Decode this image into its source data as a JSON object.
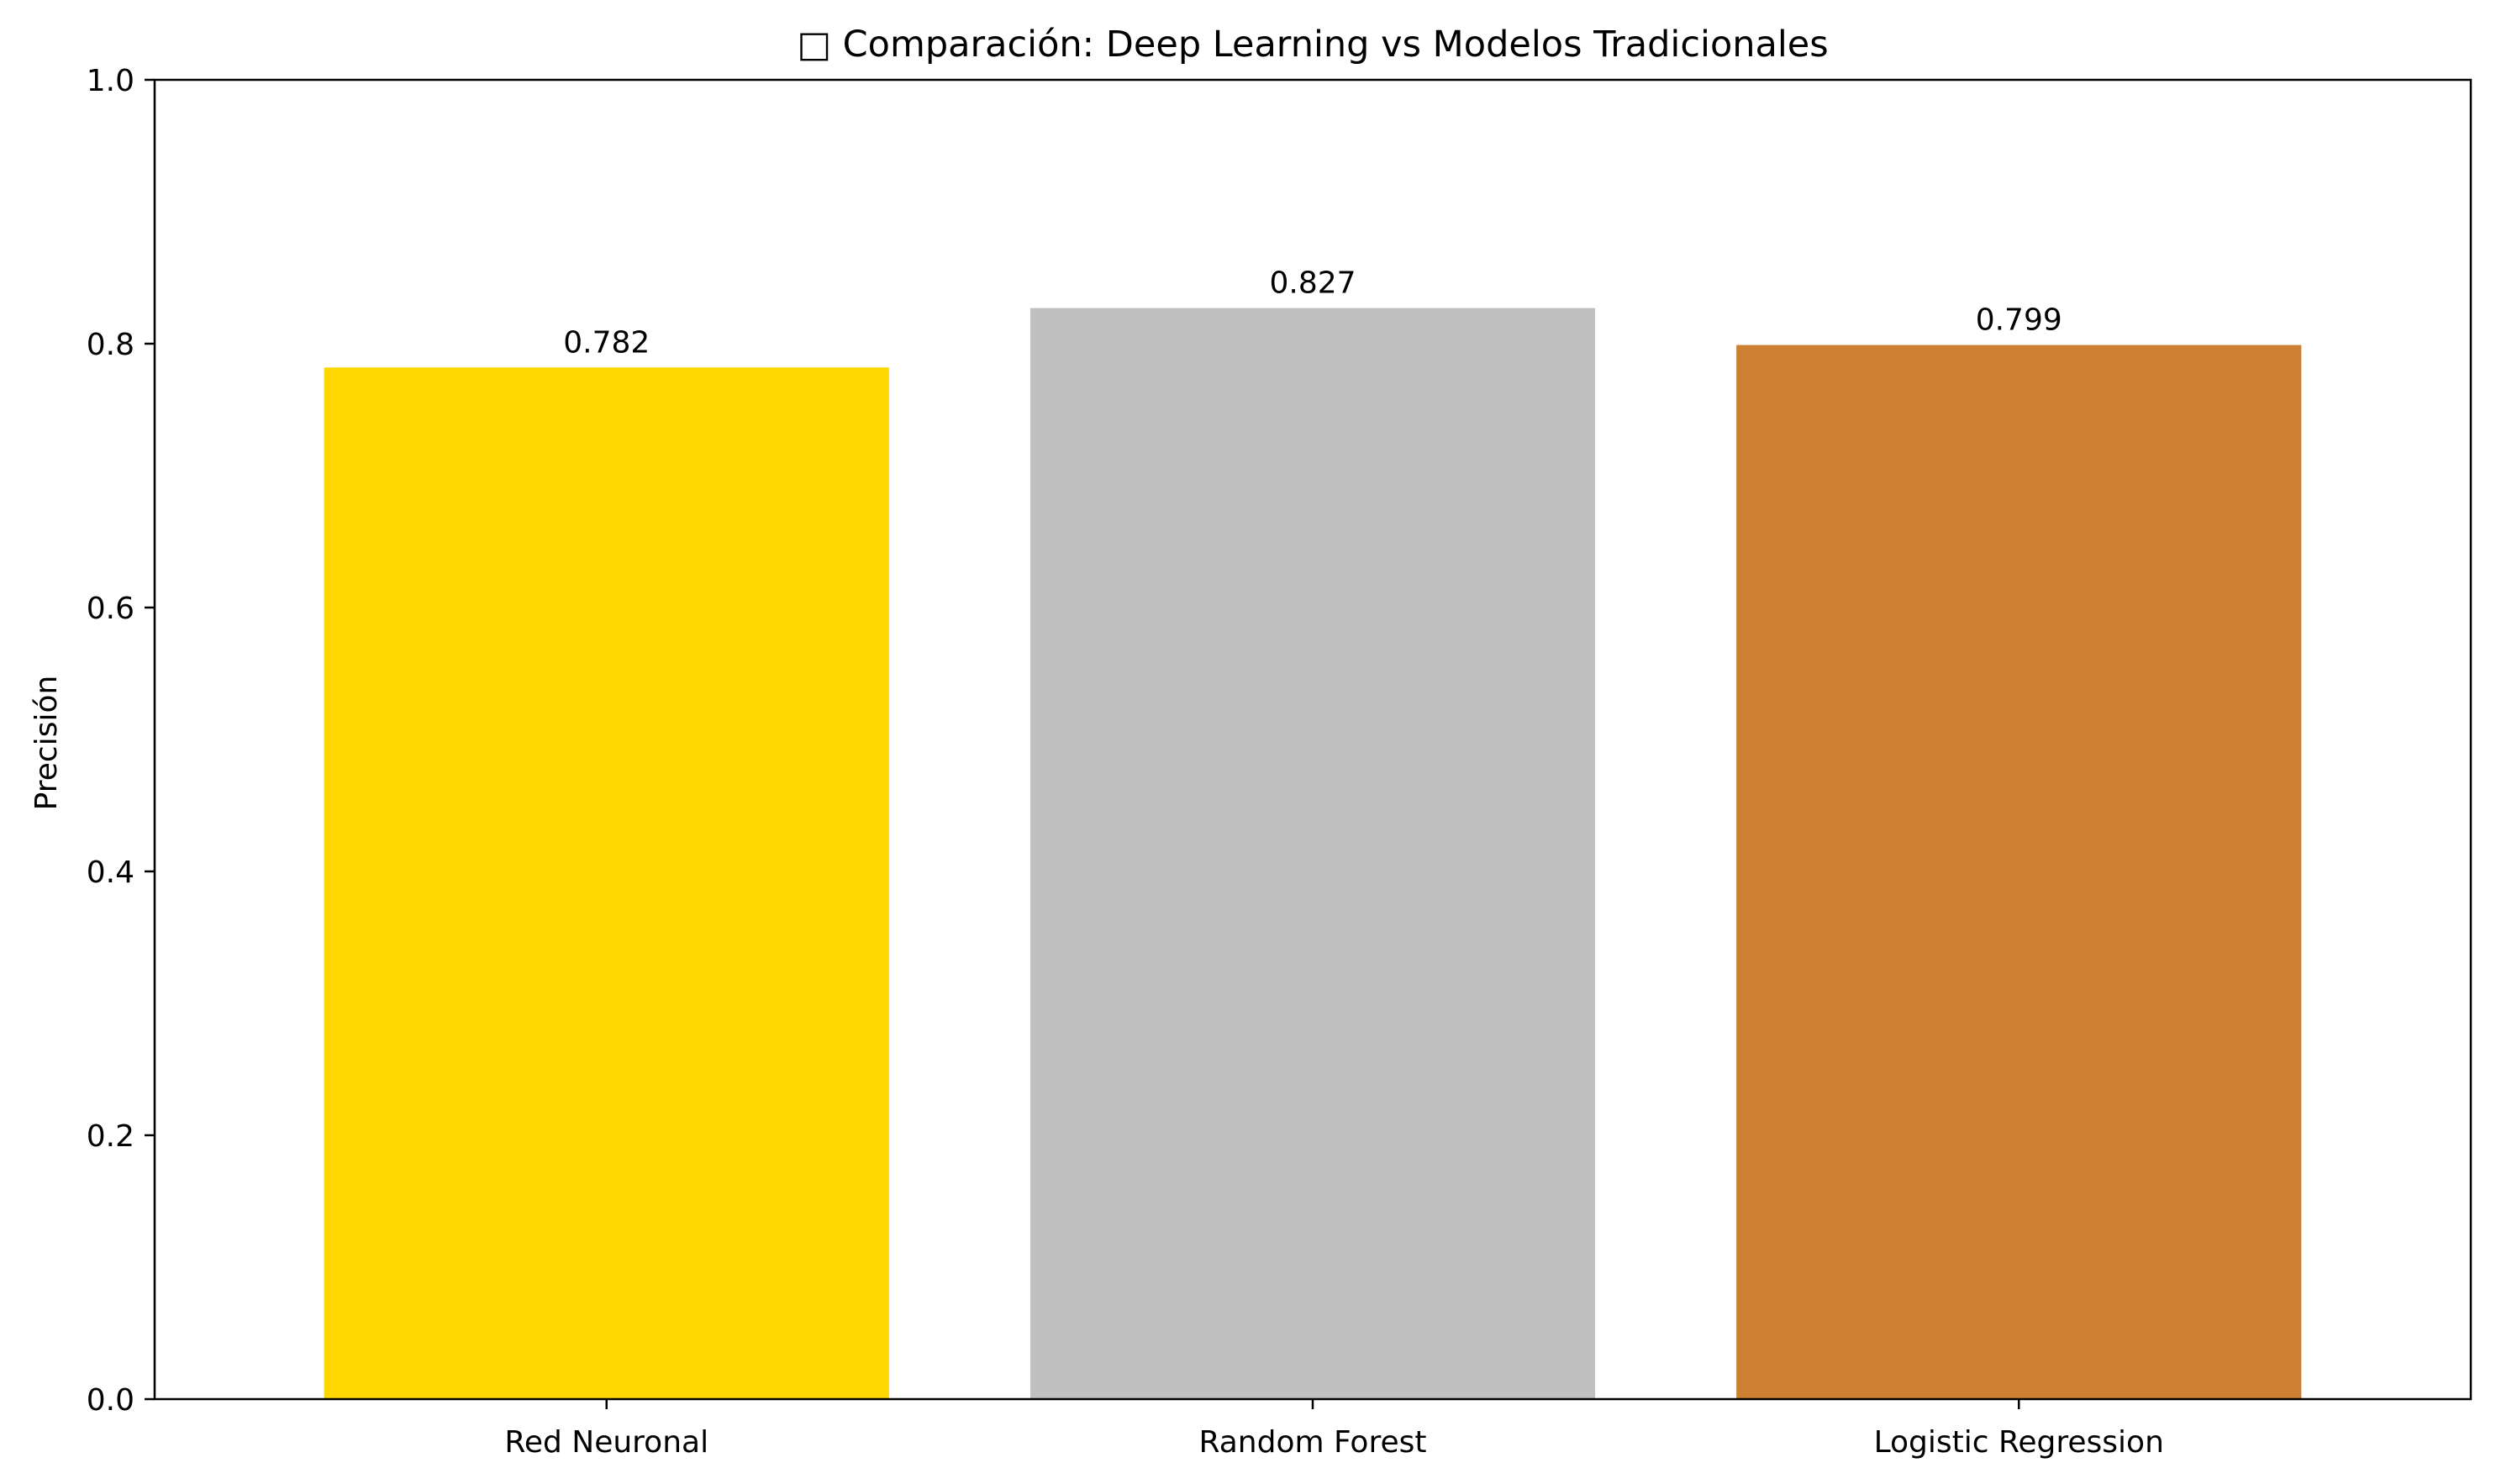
{
  "chart_data": {
    "type": "bar",
    "title": "□ Comparación: Deep Learning vs Modelos Tradicionales",
    "xlabel": "",
    "ylabel": "Precisión",
    "ylim": [
      0,
      1.0
    ],
    "yticks": [
      0.0,
      0.2,
      0.4,
      0.6,
      0.8,
      1.0
    ],
    "ytick_labels": [
      "0.0",
      "0.2",
      "0.4",
      "0.6",
      "0.8",
      "1.0"
    ],
    "categories": [
      "Red Neuronal",
      "Random Forest",
      "Logistic Regression"
    ],
    "values": [
      0.782,
      0.827,
      0.799
    ],
    "value_labels": [
      "0.782",
      "0.827",
      "0.799"
    ],
    "colors": [
      "#FFD700",
      "#C0C0C0",
      "#CD7F32"
    ],
    "grid": false,
    "legend": "none"
  }
}
